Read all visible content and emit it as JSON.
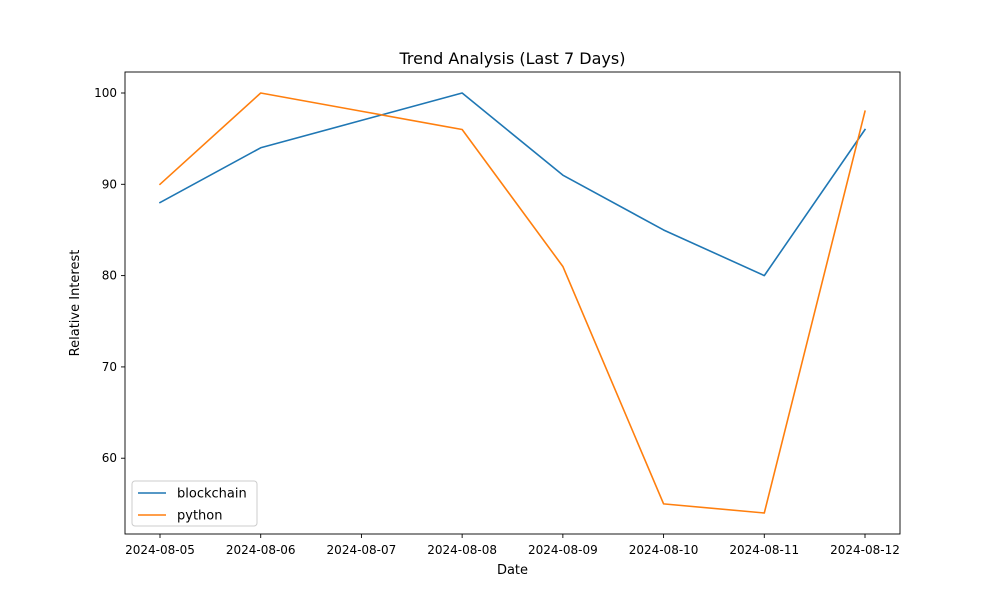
{
  "chart_data": {
    "type": "line",
    "title": "Trend Analysis (Last 7 Days)",
    "xlabel": "Date",
    "ylabel": "Relative Interest",
    "categories": [
      "2024-08-05",
      "2024-08-06",
      "2024-08-07",
      "2024-08-08",
      "2024-08-09",
      "2024-08-10",
      "2024-08-11",
      "2024-08-12"
    ],
    "series": [
      {
        "name": "blockchain",
        "color": "#1f77b4",
        "values": [
          88,
          94,
          97,
          100,
          91,
          85,
          80,
          96
        ]
      },
      {
        "name": "python",
        "color": "#ff7f0e",
        "values": [
          90,
          100,
          98,
          96,
          81,
          55,
          54,
          98
        ]
      }
    ],
    "ylim": [
      51.7,
      102.3
    ],
    "yticks": [
      60,
      70,
      80,
      90,
      100
    ],
    "grid": false,
    "legend": "lower-left"
  }
}
